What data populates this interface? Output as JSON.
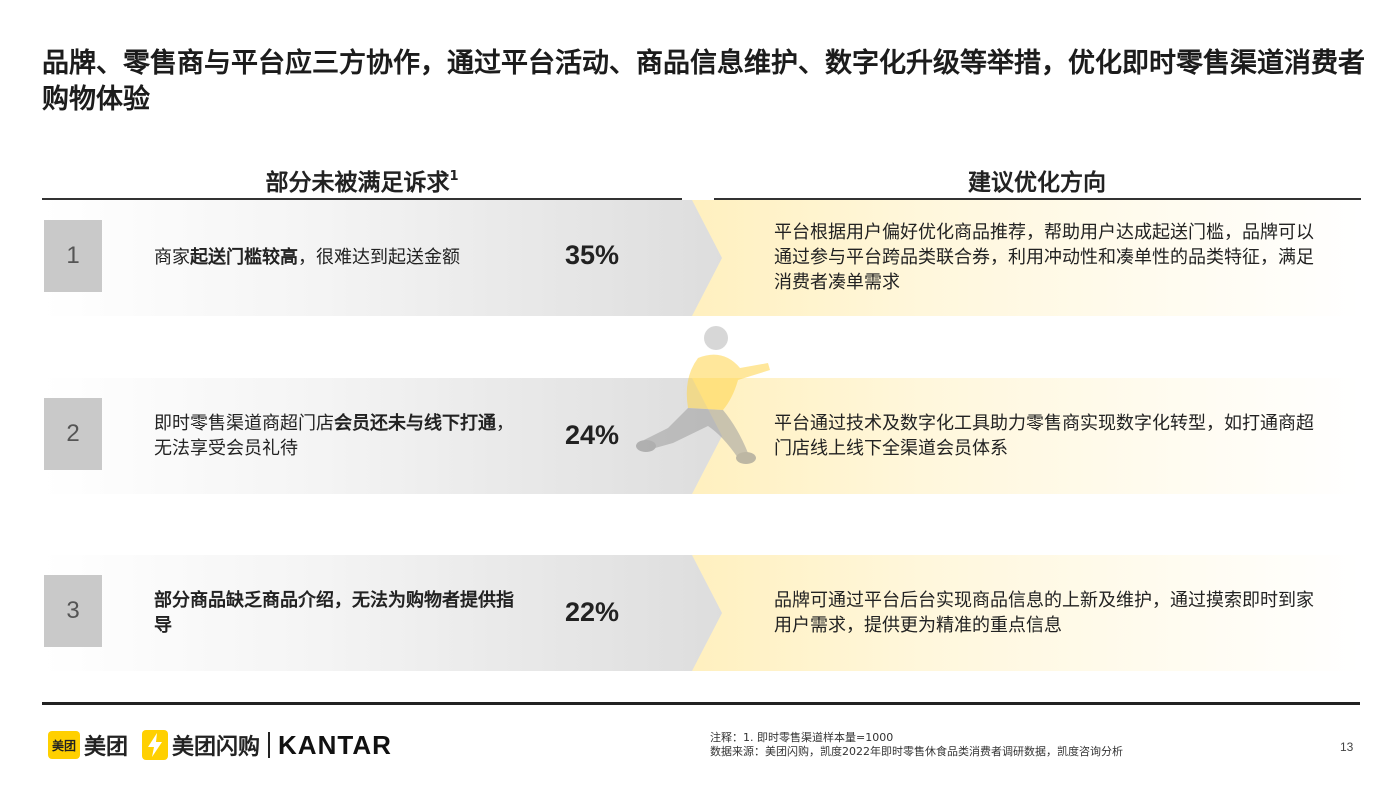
{
  "title": "品牌、零售商与平台应三方协作，通过平台活动、商品信息维护、数字化升级等举措，优化即时零售渠道消费者购物体验",
  "columns": {
    "left_header": "部分未被满足诉求",
    "left_sup": "1",
    "right_header": "建议优化方向"
  },
  "rows": [
    {
      "num": "1",
      "need_pre": "商家",
      "need_bold": "起送门槛较高",
      "need_post": "，很难达到起送金额",
      "pct": "35%",
      "advice": "平台根据用户偏好优化商品推荐，帮助用户达成起送门槛，品牌可以通过参与平台跨品类联合券，利用冲动性和凑单性的品类特征，满足消费者凑单需求"
    },
    {
      "num": "2",
      "need_pre": "即时零售渠道商超门店",
      "need_bold": "会员还未与线下打通",
      "need_post": "，无法享受会员礼待",
      "pct": "24%",
      "advice": "平台通过技术及数字化工具助力零售商实现数字化转型，如打通商超门店线上线下全渠道会员体系"
    },
    {
      "num": "3",
      "need_pre": "",
      "need_bold": "部分商品缺乏商品介绍，无法为购物者提供指导",
      "need_post": "",
      "pct": "22%",
      "advice": "品牌可通过平台后台实现商品信息的上新及维护，通过摸索即时到家用户需求，提供更为精准的重点信息"
    }
  ],
  "footer": {
    "meituan_badge": "美团",
    "meituan": "美团",
    "shangou": "美团闪购",
    "kantar": "KANTAR",
    "note1": "注释：1. 即时零售渠道样本量=1000",
    "note2": "数据来源：美团闪购，凯度2022年即时零售休食品类消费者调研数据，凯度咨询分析",
    "page": "13"
  },
  "colors": {
    "accent_yellow": "#ffd000",
    "gray_box": "#c9c9c9"
  }
}
